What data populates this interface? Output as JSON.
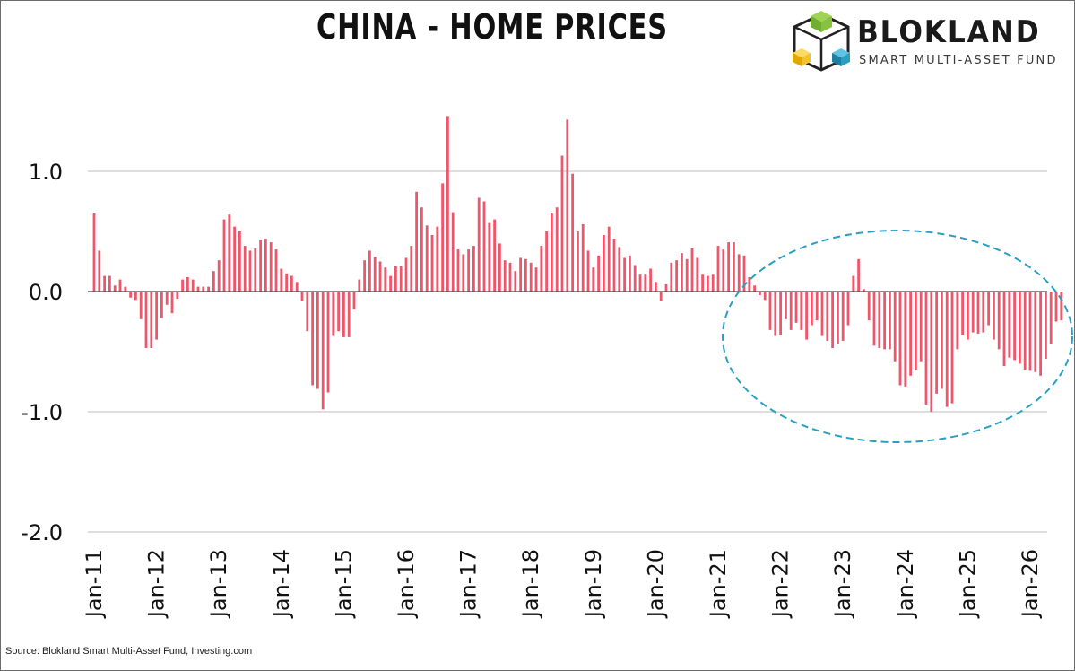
{
  "brand": {
    "name": "BLOKLAND",
    "tagline": "SMART MULTI-ASSET FUND"
  },
  "source": "Source: Blokland Smart Multi-Asset Fund, Investing.com",
  "colors": {
    "bar": "#f0566b",
    "grid": "#bdbdbd",
    "highlight": "#2a9fc0",
    "text": "#111111"
  },
  "chart_data": {
    "type": "bar",
    "title": "CHINA - HOME PRICES",
    "xlabel": "",
    "ylabel": "",
    "ylim": [
      -2.0,
      1.5
    ],
    "yticks": [
      1.0,
      0.0,
      -1.0,
      -2.0
    ],
    "ytick_labels": [
      "1.0",
      "0.0",
      "-1.0",
      "-2.0"
    ],
    "grid": "horizontal",
    "x_start": "Jan-11",
    "xtick_labels": [
      "Jan-11",
      "Jan-12",
      "Jan-13",
      "Jan-14",
      "Jan-15",
      "Jan-16",
      "Jan-17",
      "Jan-18",
      "Jan-19",
      "Jan-20",
      "Jan-21",
      "Jan-22",
      "Jan-23",
      "Jan-24",
      "Jan-25",
      "Jan-26"
    ],
    "values": [
      0.65,
      0.34,
      0.13,
      0.13,
      0.05,
      0.1,
      0.04,
      -0.05,
      -0.07,
      -0.23,
      -0.47,
      -0.47,
      -0.4,
      -0.22,
      -0.11,
      -0.18,
      -0.06,
      0.1,
      0.12,
      0.1,
      0.04,
      0.04,
      0.04,
      0.17,
      0.26,
      0.6,
      0.64,
      0.54,
      0.5,
      0.38,
      0.34,
      0.36,
      0.43,
      0.44,
      0.41,
      0.35,
      0.19,
      0.15,
      0.13,
      0.08,
      -0.08,
      -0.33,
      -0.78,
      -0.81,
      -0.98,
      -0.84,
      -0.37,
      -0.33,
      -0.38,
      -0.38,
      -0.15,
      0.1,
      0.26,
      0.34,
      0.29,
      0.25,
      0.2,
      0.13,
      0.21,
      0.21,
      0.28,
      0.38,
      0.83,
      0.7,
      0.55,
      0.47,
      0.54,
      0.9,
      1.46,
      0.66,
      0.35,
      0.31,
      0.35,
      0.38,
      0.78,
      0.75,
      0.57,
      0.6,
      0.4,
      0.26,
      0.24,
      0.17,
      0.28,
      0.27,
      0.24,
      0.2,
      0.38,
      0.5,
      0.65,
      0.7,
      1.13,
      1.43,
      0.98,
      0.5,
      0.56,
      0.34,
      0.2,
      0.3,
      0.47,
      0.54,
      0.44,
      0.37,
      0.28,
      0.3,
      0.22,
      0.14,
      0.14,
      0.19,
      0.08,
      -0.08,
      0.06,
      0.24,
      0.26,
      0.32,
      0.27,
      0.36,
      0.28,
      0.14,
      0.13,
      0.14,
      0.38,
      0.35,
      0.41,
      0.41,
      0.31,
      0.3,
      0.12,
      0.05,
      -0.03,
      -0.07,
      -0.32,
      -0.37,
      -0.36,
      -0.23,
      -0.32,
      -0.26,
      -0.32,
      -0.4,
      -0.28,
      -0.24,
      -0.37,
      -0.41,
      -0.47,
      -0.44,
      -0.41,
      -0.28,
      0.13,
      0.27,
      0.02,
      -0.24,
      -0.45,
      -0.47,
      -0.48,
      -0.48,
      -0.58,
      -0.78,
      -0.79,
      -0.7,
      -0.65,
      -0.58,
      -0.94,
      -1.0,
      -0.85,
      -0.81,
      -0.96,
      -0.93,
      -0.48,
      -0.36,
      -0.4,
      -0.34,
      -0.35,
      -0.34,
      -0.28,
      -0.4,
      -0.48,
      -0.62,
      -0.55,
      -0.57,
      -0.6,
      -0.65,
      -0.66,
      -0.67,
      -0.7,
      -0.56,
      -0.44,
      -0.25,
      -0.24
    ],
    "annotations": [
      {
        "type": "dashed-ellipse",
        "from": "Jan-22",
        "to": "Jan-26",
        "description": "highlighted region"
      }
    ]
  }
}
